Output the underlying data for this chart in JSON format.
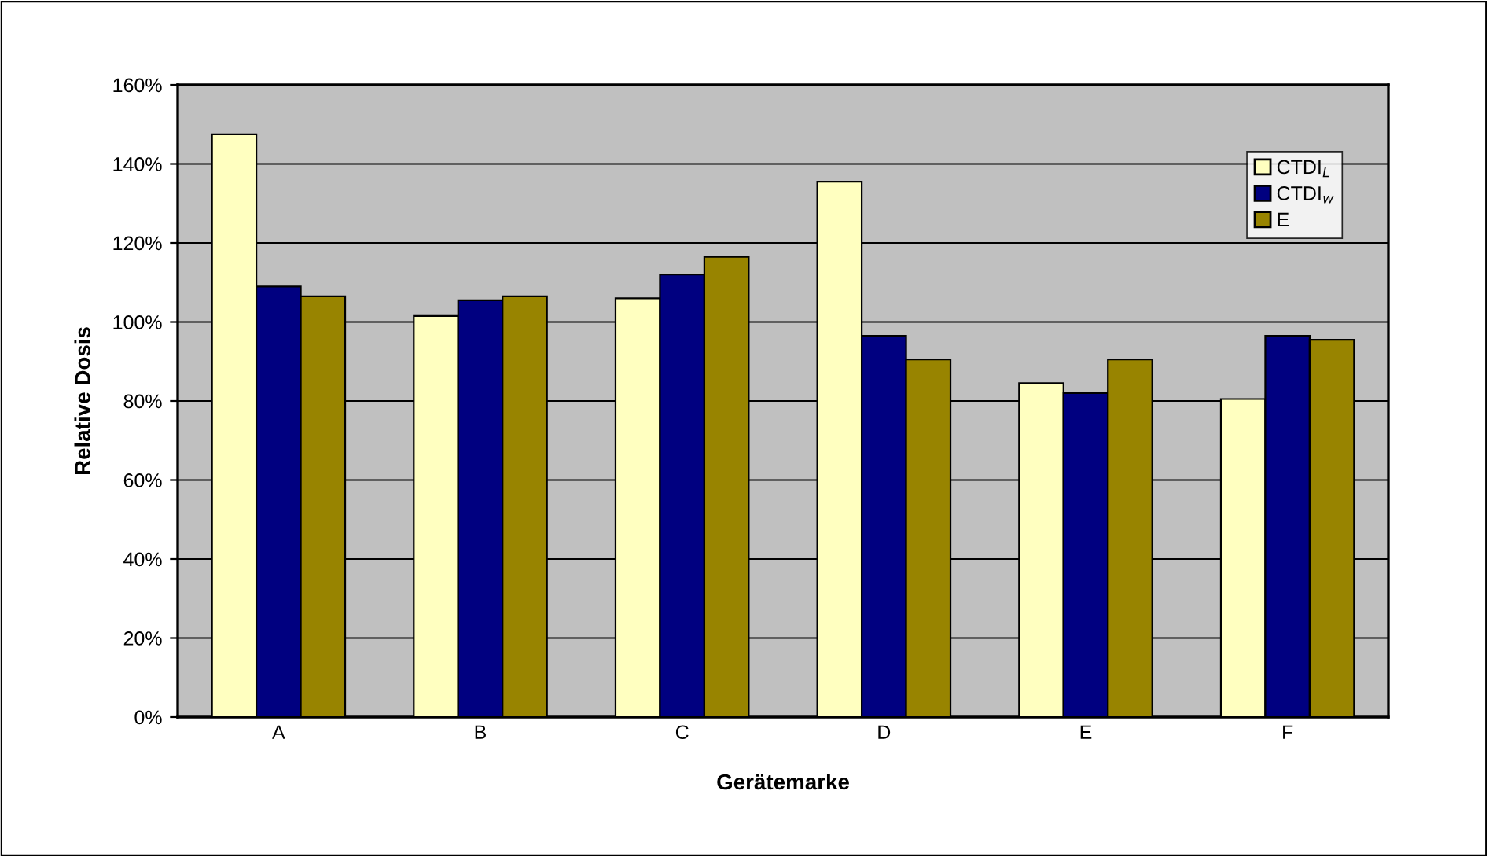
{
  "chart_data": {
    "type": "bar",
    "xlabel": "Gerätemarke",
    "ylabel": "Relative Dosis",
    "categories": [
      "A",
      "B",
      "C",
      "D",
      "E",
      "F"
    ],
    "series": [
      {
        "name": "CTDI$_{L}$",
        "color": "#ffffc0",
        "values": [
          147.5,
          101.5,
          106,
          135.5,
          84.5,
          80.5
        ]
      },
      {
        "name": "CTDI$_{w}$",
        "color": "#000080",
        "values": [
          109,
          105.5,
          112,
          96.5,
          82,
          96.5
        ]
      },
      {
        "name": "E",
        "color": "#988400",
        "values": [
          106.5,
          106.5,
          116.5,
          90.5,
          90.5,
          95.5
        ]
      }
    ],
    "ylim": [
      0,
      160
    ],
    "yticks": [
      {
        "value": 0,
        "label": "0%"
      },
      {
        "value": 20,
        "label": "20%"
      },
      {
        "value": 40,
        "label": "40%"
      },
      {
        "value": 60,
        "label": "60%"
      },
      {
        "value": 80,
        "label": "80%"
      },
      {
        "value": 100,
        "label": "100%"
      },
      {
        "value": 120,
        "label": "120%"
      },
      {
        "value": 140,
        "label": "140%"
      },
      {
        "value": 160,
        "label": "160%"
      }
    ],
    "grid": "y",
    "legend": "top right"
  }
}
